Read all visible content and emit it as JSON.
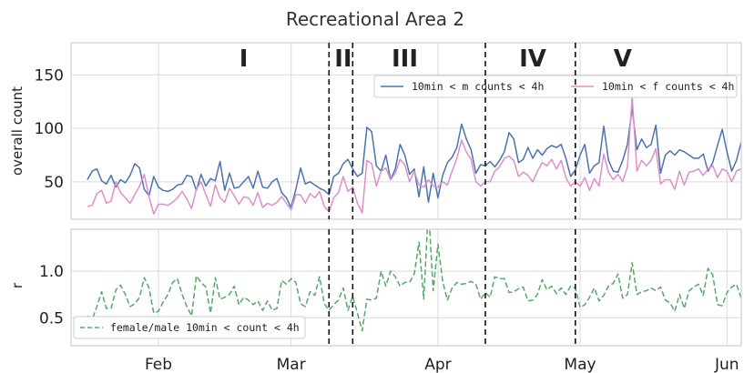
{
  "chart_data": {
    "title": "Recreational Area 2",
    "x_ticks": [
      {
        "label": "Feb",
        "date": "2021-02-01"
      },
      {
        "label": "Mar",
        "date": "2021-03-01"
      },
      {
        "label": "Apr",
        "date": "2021-04-01"
      },
      {
        "label": "May",
        "date": "2021-05-01"
      },
      {
        "label": "Jun",
        "date": "2021-06-01"
      }
    ],
    "phases": [
      {
        "label": "I",
        "date": "2021-02-19"
      },
      {
        "label": "II",
        "date": "2021-03-12"
      },
      {
        "label": "III",
        "date": "2021-03-25"
      },
      {
        "label": "IV",
        "date": "2021-04-21"
      },
      {
        "label": "V",
        "date": "2021-05-10"
      }
    ],
    "phase_boundaries": [
      "2021-03-09",
      "2021-03-14",
      "2021-04-11",
      "2021-04-30"
    ],
    "panels": [
      {
        "type": "line",
        "ylabel": "overall count",
        "ylim": [
          15,
          180
        ],
        "yticks": [
          50,
          100,
          150
        ],
        "legend_position": "upper-right",
        "x_start": "2021-01-17",
        "series": [
          {
            "name": "10min < m counts < 4h",
            "color": "#4c72b0",
            "values": [
              52,
              60,
              62,
              51,
              48,
              56,
              45,
              52,
              49,
              56,
              67,
              63,
              43,
              37,
              55,
              45,
              42,
              41,
              43,
              47,
              48,
              56,
              55,
              42,
              57,
              46,
              53,
              51,
              69,
              42,
              58,
              44,
              45,
              50,
              55,
              44,
              60,
              45,
              44,
              50,
              53,
              40,
              35,
              26,
              43,
              63,
              48,
              50,
              47,
              44,
              42,
              38,
              55,
              58,
              67,
              71,
              62,
              55,
              58,
              101,
              97,
              65,
              60,
              75,
              52,
              62,
              85,
              75,
              57,
              62,
              36,
              64,
              31,
              58,
              35,
              56,
              68,
              73,
              82,
              104,
              90,
              80,
              58,
              66,
              65,
              69,
              64,
              70,
              78,
              96,
              90,
              68,
              71,
              82,
              72,
              80,
              75,
              81,
              84,
              82,
              85,
              72,
              55,
              61,
              75,
              85,
              58,
              65,
              68,
              102,
              70,
              60,
              59,
              70,
              85,
              119,
              80,
              90,
              82,
              85,
              103,
              58,
              75,
              79,
              75,
              80,
              78,
              75,
              72,
              72,
              76,
              60,
              68,
              84,
              99,
              78,
              60,
              70,
              87,
              83,
              76,
              100,
              62,
              75,
              84,
              85,
              93,
              82,
              65,
              92,
              76,
              69,
              80,
              68,
              72,
              100,
              76,
              52,
              61,
              67,
              52,
              90,
              78,
              78
            ]
          },
          {
            "name": "10min < f counts < 4h",
            "color": "#dd8fcc",
            "values": [
              27,
              28,
              39,
              42,
              30,
              32,
              50,
              40,
              35,
              30,
              38,
              46,
              57,
              36,
              20,
              29,
              29,
              28,
              31,
              35,
              41,
              34,
              25,
              43,
              50,
              38,
              27,
              47,
              35,
              31,
              44,
              37,
              29,
              36,
              35,
              28,
              40,
              26,
              30,
              28,
              31,
              36,
              30,
              24,
              38,
              38,
              30,
              39,
              35,
              41,
              27,
              22,
              35,
              40,
              55,
              41,
              45,
              30,
              21,
              70,
              67,
              46,
              60,
              63,
              52,
              58,
              71,
              66,
              50,
              60,
              47,
              45,
              52,
              46,
              45,
              50,
              47,
              60,
              72,
              89,
              78,
              71,
              50,
              46,
              50,
              50,
              60,
              64,
              72,
              74,
              70,
              55,
              59,
              56,
              50,
              60,
              68,
              65,
              71,
              62,
              70,
              54,
              46,
              50,
              46,
              54,
              42,
              53,
              46,
              76,
              59,
              52,
              57,
              50,
              64,
              130,
              60,
              70,
              65,
              70,
              81,
              48,
              52,
              52,
              43,
              60,
              47,
              59,
              60,
              62,
              56,
              62,
              65,
              54,
              62,
              60,
              50,
              60,
              62,
              65,
              70,
              75,
              41,
              50,
              66,
              58,
              65,
              68,
              34,
              50,
              70,
              60,
              67,
              48,
              56,
              80,
              59,
              44,
              52,
              63,
              40,
              68,
              40,
              40
            ]
          }
        ]
      },
      {
        "type": "line",
        "ylabel": "r",
        "ylim": [
          0.2,
          1.45
        ],
        "yticks": [
          0.5,
          1.0
        ],
        "legend_position": "lower-left",
        "x_start": "2021-01-17",
        "series": [
          {
            "name": "female/male 10min < count < 4h",
            "color": "#55a868",
            "dash": true,
            "values": [
              0.52,
              0.48,
              0.62,
              0.78,
              0.6,
              0.6,
              0.8,
              0.85,
              0.75,
              0.62,
              0.65,
              0.72,
              0.93,
              0.82,
              0.55,
              0.57,
              0.67,
              0.75,
              0.88,
              0.92,
              0.75,
              0.62,
              0.52,
              0.95,
              0.88,
              0.83,
              0.55,
              0.93,
              0.7,
              0.72,
              0.75,
              0.84,
              0.64,
              0.72,
              0.69,
              0.64,
              0.68,
              0.58,
              0.68,
              0.58,
              0.6,
              0.9,
              0.86,
              0.92,
              0.88,
              0.65,
              0.62,
              0.78,
              0.74,
              0.94,
              0.65,
              0.58,
              0.64,
              0.69,
              0.82,
              0.58,
              0.73,
              0.55,
              0.36,
              0.7,
              0.69,
              0.71,
              1.0,
              0.84,
              1.0,
              0.94,
              0.84,
              0.88,
              0.88,
              0.97,
              1.31,
              0.7,
              1.68,
              0.79,
              1.29,
              0.89,
              0.69,
              0.82,
              0.88,
              0.86,
              0.87,
              0.89,
              0.86,
              0.7,
              0.77,
              0.72,
              0.94,
              0.92,
              0.92,
              0.77,
              0.78,
              0.81,
              0.83,
              0.68,
              0.69,
              0.75,
              0.91,
              0.8,
              0.84,
              0.76,
              0.82,
              0.75,
              0.84,
              0.82,
              0.61,
              0.64,
              0.72,
              0.82,
              0.68,
              0.74,
              0.84,
              0.87,
              0.97,
              0.71,
              0.75,
              1.09,
              0.75,
              0.78,
              0.79,
              0.82,
              0.79,
              0.83,
              0.69,
              0.66,
              0.57,
              0.75,
              0.6,
              0.79,
              0.83,
              0.86,
              0.74,
              1.03,
              0.96,
              0.64,
              0.63,
              0.77,
              0.83,
              0.86,
              0.71,
              0.78,
              0.8,
              0.75,
              0.66,
              0.67,
              0.79,
              0.68,
              0.7,
              0.83,
              0.52,
              0.54,
              0.92,
              0.7,
              0.84,
              0.71,
              0.78,
              0.81,
              0.78,
              0.85,
              0.71,
              0.84,
              0.86,
              0.94,
              0.78,
              0.75,
              0.77,
              0.94,
              0.51,
              0.51
            ]
          }
        ]
      }
    ]
  }
}
